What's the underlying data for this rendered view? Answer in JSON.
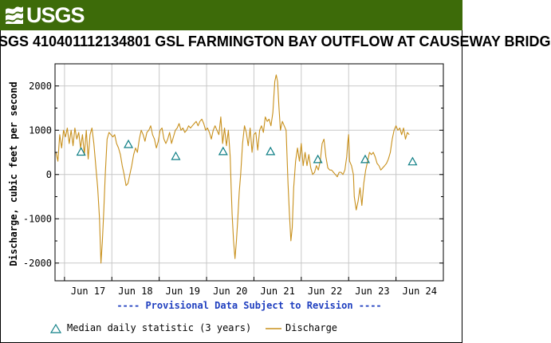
{
  "header": {
    "agency": "USGS"
  },
  "title": "SGS 410401112134801 GSL FARMINGTON BAY OUTFLOW AT CAUSEWAY BRIDG",
  "provisional_note": "---- Provisional Data Subject to Revision ----",
  "colors": {
    "banner": "#3d6b09",
    "discharge": "#c8901c",
    "median": "#0f7f86",
    "note": "#1f3fbf",
    "grid": "#c8c8c8"
  },
  "icons": {
    "logo": "usgs-logo-icon",
    "median_marker": "triangle-icon",
    "discharge_marker": "line-icon"
  },
  "legend": {
    "median": "Median daily statistic (3 years)",
    "discharge": "Discharge"
  },
  "chart_data": {
    "type": "line",
    "title": "SGS 410401112134801 GSL FARMINGTON BAY OUTFLOW AT CAUSEWAY BRIDG",
    "xlabel": "",
    "ylabel": "Discharge, cubic feet per second",
    "ylim": [
      -2400,
      2500
    ],
    "xlim": [
      16.3,
      24.5
    ],
    "grid": true,
    "legend_position": "bottom",
    "x_ticks": [
      17,
      18,
      19,
      20,
      21,
      22,
      23,
      24
    ],
    "x_tick_labels": [
      "Jun 17",
      "Jun 18",
      "Jun 19",
      "Jun 20",
      "Jun 21",
      "Jun 22",
      "Jun 23",
      "Jun 24"
    ],
    "y_ticks": [
      -2000,
      -1000,
      0,
      1000,
      2000
    ],
    "y_tick_labels": [
      "-2000",
      "-1000",
      "0",
      "1000",
      "2000"
    ],
    "series": [
      {
        "name": "Discharge",
        "style": "line",
        "points": [
          [
            16.32,
            500
          ],
          [
            16.36,
            300
          ],
          [
            16.4,
            900
          ],
          [
            16.44,
            600
          ],
          [
            16.48,
            1000
          ],
          [
            16.52,
            850
          ],
          [
            16.56,
            1050
          ],
          [
            16.6,
            700
          ],
          [
            16.64,
            1000
          ],
          [
            16.68,
            650
          ],
          [
            16.72,
            1050
          ],
          [
            16.76,
            800
          ],
          [
            16.8,
            950
          ],
          [
            16.84,
            600
          ],
          [
            16.88,
            900
          ],
          [
            16.92,
            450
          ],
          [
            16.96,
            1000
          ],
          [
            17.0,
            350
          ],
          [
            17.04,
            900
          ],
          [
            17.08,
            1050
          ],
          [
            17.12,
            700
          ],
          [
            17.16,
            200
          ],
          [
            17.2,
            -300
          ],
          [
            17.24,
            -1000
          ],
          [
            17.27,
            -2000
          ],
          [
            17.3,
            -1500
          ],
          [
            17.33,
            -800
          ],
          [
            17.36,
            0
          ],
          [
            17.4,
            800
          ],
          [
            17.44,
            950
          ],
          [
            17.48,
            900
          ],
          [
            17.52,
            850
          ],
          [
            17.56,
            900
          ],
          [
            17.6,
            700
          ],
          [
            17.64,
            600
          ],
          [
            17.68,
            450
          ],
          [
            17.72,
            200
          ],
          [
            17.76,
            0
          ],
          [
            17.8,
            -250
          ],
          [
            17.84,
            -200
          ],
          [
            17.88,
            0
          ],
          [
            17.92,
            200
          ],
          [
            17.96,
            450
          ],
          [
            18.0,
            600
          ],
          [
            18.04,
            500
          ],
          [
            18.08,
            800
          ],
          [
            18.12,
            1000
          ],
          [
            18.16,
            900
          ],
          [
            18.2,
            750
          ],
          [
            18.24,
            950
          ],
          [
            18.28,
            1000
          ],
          [
            18.32,
            1100
          ],
          [
            18.36,
            900
          ],
          [
            18.4,
            800
          ],
          [
            18.44,
            600
          ],
          [
            18.48,
            750
          ],
          [
            18.52,
            1000
          ],
          [
            18.56,
            1050
          ],
          [
            18.6,
            800
          ],
          [
            18.64,
            700
          ],
          [
            18.68,
            800
          ],
          [
            18.72,
            950
          ],
          [
            18.76,
            700
          ],
          [
            18.8,
            850
          ],
          [
            18.84,
            1000
          ],
          [
            18.88,
            1050
          ],
          [
            18.92,
            1150
          ],
          [
            18.96,
            1000
          ],
          [
            19.0,
            1050
          ],
          [
            19.04,
            950
          ],
          [
            19.08,
            1000
          ],
          [
            19.12,
            1100
          ],
          [
            19.16,
            1050
          ],
          [
            19.2,
            1100
          ],
          [
            19.24,
            1150
          ],
          [
            19.28,
            1200
          ],
          [
            19.32,
            1100
          ],
          [
            19.36,
            1200
          ],
          [
            19.4,
            1250
          ],
          [
            19.44,
            1150
          ],
          [
            19.48,
            1000
          ],
          [
            19.52,
            1050
          ],
          [
            19.56,
            950
          ],
          [
            19.6,
            800
          ],
          [
            19.64,
            1000
          ],
          [
            19.68,
            1100
          ],
          [
            19.72,
            1000
          ],
          [
            19.76,
            900
          ],
          [
            19.8,
            1300
          ],
          [
            19.84,
            700
          ],
          [
            19.88,
            1050
          ],
          [
            19.92,
            650
          ],
          [
            19.96,
            1000
          ],
          [
            20.0,
            400
          ],
          [
            20.02,
            -300
          ],
          [
            20.04,
            -900
          ],
          [
            20.07,
            -1500
          ],
          [
            20.1,
            -1900
          ],
          [
            20.13,
            -1500
          ],
          [
            20.16,
            -1000
          ],
          [
            20.19,
            -400
          ],
          [
            20.22,
            0
          ],
          [
            20.26,
            700
          ],
          [
            20.3,
            1100
          ],
          [
            20.34,
            950
          ],
          [
            20.38,
            650
          ],
          [
            20.42,
            1050
          ],
          [
            20.46,
            500
          ],
          [
            20.5,
            900
          ],
          [
            20.54,
            950
          ],
          [
            20.58,
            550
          ],
          [
            20.62,
            1000
          ],
          [
            20.66,
            1100
          ],
          [
            20.7,
            950
          ],
          [
            20.74,
            1300
          ],
          [
            20.78,
            1200
          ],
          [
            20.82,
            1250
          ],
          [
            20.86,
            1100
          ],
          [
            20.9,
            1400
          ],
          [
            20.94,
            2100
          ],
          [
            20.97,
            2250
          ],
          [
            21.0,
            2100
          ],
          [
            21.03,
            1500
          ],
          [
            21.06,
            1000
          ],
          [
            21.1,
            1200
          ],
          [
            21.14,
            1100
          ],
          [
            21.18,
            1000
          ],
          [
            21.22,
            -200
          ],
          [
            21.25,
            -900
          ],
          [
            21.28,
            -1500
          ],
          [
            21.31,
            -1200
          ],
          [
            21.34,
            -300
          ],
          [
            21.38,
            300
          ],
          [
            21.42,
            600
          ],
          [
            21.46,
            300
          ],
          [
            21.5,
            700
          ],
          [
            21.54,
            200
          ],
          [
            21.58,
            500
          ],
          [
            21.62,
            200
          ],
          [
            21.66,
            450
          ],
          [
            21.7,
            150
          ],
          [
            21.74,
            0
          ],
          [
            21.78,
            50
          ],
          [
            21.82,
            200
          ],
          [
            21.86,
            100
          ],
          [
            21.9,
            300
          ],
          [
            21.94,
            700
          ],
          [
            21.98,
            800
          ],
          [
            22.02,
            400
          ],
          [
            22.06,
            150
          ],
          [
            22.1,
            100
          ],
          [
            22.14,
            100
          ],
          [
            22.18,
            50
          ],
          [
            22.22,
            0
          ],
          [
            22.26,
            -50
          ],
          [
            22.3,
            50
          ],
          [
            22.34,
            50
          ],
          [
            22.38,
            0
          ],
          [
            22.42,
            100
          ],
          [
            22.46,
            400
          ],
          [
            22.48,
            700
          ],
          [
            22.5,
            900
          ],
          [
            22.52,
            300
          ],
          [
            22.56,
            200
          ],
          [
            22.6,
            0
          ],
          [
            22.62,
            -500
          ],
          [
            22.66,
            -800
          ],
          [
            22.7,
            -600
          ],
          [
            22.74,
            -300
          ],
          [
            22.78,
            -700
          ],
          [
            22.82,
            -200
          ],
          [
            22.86,
            100
          ],
          [
            22.9,
            300
          ],
          [
            22.94,
            500
          ],
          [
            22.98,
            450
          ],
          [
            23.02,
            500
          ],
          [
            23.06,
            400
          ],
          [
            23.1,
            250
          ],
          [
            23.14,
            200
          ],
          [
            23.18,
            100
          ],
          [
            23.22,
            150
          ],
          [
            23.26,
            200
          ],
          [
            23.3,
            250
          ],
          [
            23.34,
            350
          ],
          [
            23.38,
            500
          ],
          [
            23.42,
            800
          ],
          [
            23.46,
            1000
          ],
          [
            23.5,
            1100
          ],
          [
            23.54,
            1000
          ],
          [
            23.58,
            1050
          ],
          [
            23.62,
            900
          ],
          [
            23.66,
            1050
          ],
          [
            23.7,
            800
          ],
          [
            23.74,
            950
          ],
          [
            23.78,
            900
          ]
        ]
      },
      {
        "name": "Median daily statistic (3 years)",
        "style": "markers",
        "points": [
          [
            16.85,
            510
          ],
          [
            17.85,
            680
          ],
          [
            18.85,
            410
          ],
          [
            19.85,
            520
          ],
          [
            20.85,
            520
          ],
          [
            21.85,
            340
          ],
          [
            22.85,
            340
          ],
          [
            23.85,
            290
          ]
        ]
      }
    ]
  }
}
